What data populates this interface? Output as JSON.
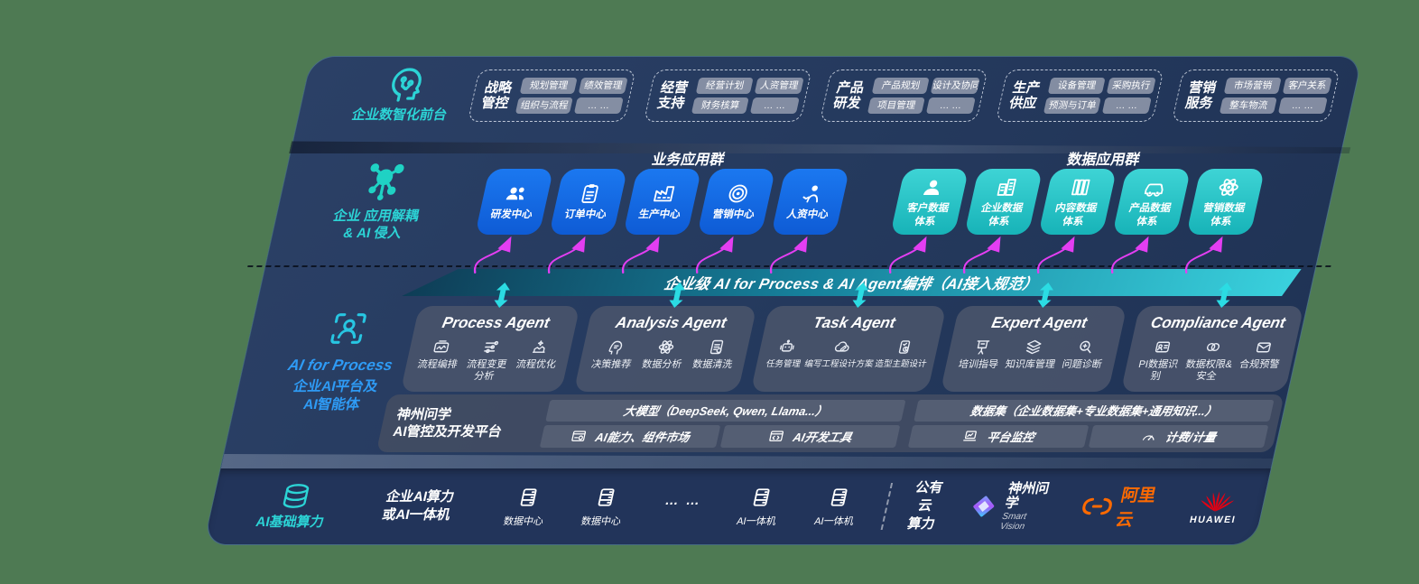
{
  "colors": {
    "background_green": "#4e7a53",
    "panel_navy": "#24395d",
    "accent_teal": "#2cd4d6",
    "accent_blue": "#2e9bf5",
    "app_blue": "#1467e2",
    "app_teal": "#2cc7c9",
    "arrow_magenta": "#e33ef2",
    "alibaba_orange": "#ff6a00",
    "huawei_red": "#e60012"
  },
  "front_office": {
    "label": "企业数智化前台",
    "groups": [
      {
        "title": "战略管控",
        "items": [
          "规划管理",
          "绩效管理",
          "组织与流程",
          "… …"
        ]
      },
      {
        "title": "经营支持",
        "items": [
          "经营计划",
          "人资管理",
          "财务核算",
          "… …"
        ]
      },
      {
        "title": "产品研发",
        "items": [
          "产品规划",
          "设计及协同",
          "项目管理",
          "… …"
        ]
      },
      {
        "title": "生产供应",
        "items": [
          "设备管理",
          "采购执行",
          "预测与订单",
          "… …"
        ]
      },
      {
        "title": "营销服务",
        "items": [
          "市场营销",
          "客户关系",
          "整车物流",
          "… …"
        ]
      }
    ]
  },
  "app_layer": {
    "label_line1": "企业 应用解耦",
    "label_line2": "& AI 侵入",
    "business_group_title": "业务应用群",
    "business_apps": [
      {
        "icon": "team",
        "label": "研发中心"
      },
      {
        "icon": "order",
        "label": "订单中心"
      },
      {
        "icon": "factory",
        "label": "生产中心"
      },
      {
        "icon": "target",
        "label": "营销中心"
      },
      {
        "icon": "hr",
        "label": "人资中心"
      }
    ],
    "data_group_title": "数据应用群",
    "data_apps": [
      {
        "icon": "user",
        "label": "客户数据\n体系"
      },
      {
        "icon": "building",
        "label": "企业数据\n体系"
      },
      {
        "icon": "content",
        "label": "内容数据\n体系"
      },
      {
        "icon": "car",
        "label": "产品数据\n体系"
      },
      {
        "icon": "atom",
        "label": "营销数据\n体系"
      }
    ]
  },
  "ai_bus": {
    "label": "企业级 AI for Process & AI Agent编排（AI接入规范）"
  },
  "agent_layer": {
    "label_en": "AI for Process",
    "label_cn1": "企业AI平台及",
    "label_cn2": "AI智能体",
    "agents": [
      {
        "name": "Process Agent",
        "items": [
          {
            "icon": "workflow",
            "label": "流程编排"
          },
          {
            "icon": "flow-sliders",
            "label": "流程变更分析"
          },
          {
            "icon": "flow-optimize",
            "label": "流程优化"
          }
        ]
      },
      {
        "name": "Analysis Agent",
        "items": [
          {
            "icon": "decision-head",
            "label": "决策推荐"
          },
          {
            "icon": "atom",
            "label": "数据分析"
          },
          {
            "icon": "data-clean",
            "label": "数据清洗"
          }
        ]
      },
      {
        "name": "Task Agent",
        "items": [
          {
            "icon": "robot-task",
            "label": "任务管理"
          },
          {
            "icon": "cloud-edit",
            "label": "编写工程设计方案"
          },
          {
            "icon": "design-check",
            "label": "造型主题设计"
          }
        ]
      },
      {
        "name": "Expert Agent",
        "items": [
          {
            "icon": "training",
            "label": "培训指导"
          },
          {
            "icon": "knowledge-layers",
            "label": "知识库管理"
          },
          {
            "icon": "diagnosis",
            "label": "问题诊断"
          }
        ]
      },
      {
        "name": "Compliance Agent",
        "items": [
          {
            "icon": "id-card",
            "label": "PI数据识别"
          },
          {
            "icon": "data-link",
            "label": "数据权限&\n安全"
          },
          {
            "icon": "compliance-mail",
            "label": "合规预警"
          }
        ]
      }
    ]
  },
  "platform": {
    "label_line1": "神州问学",
    "label_line2": "AI管控及开发平台",
    "left": {
      "bar": "大模型（DeepSeek, Qwen, Llama...）",
      "cells": [
        {
          "icon": "component-market",
          "label": "AI能力、组件市场"
        },
        {
          "icon": "dev-tools",
          "label": "AI开发工具"
        }
      ]
    },
    "right": {
      "bar": "数据集（企业数据集+专业数据集+通用知识...）",
      "cells": [
        {
          "icon": "monitor",
          "label": "平台监控"
        },
        {
          "icon": "meter",
          "label": "计费/计量"
        }
      ]
    }
  },
  "infra": {
    "label": "AI基础算力",
    "compute": "企业AI算力\n或AI一体机",
    "nodes": [
      {
        "icon": "server",
        "label": "数据中心"
      },
      {
        "icon": "server",
        "label": "数据中心"
      },
      {
        "icon": "",
        "label": "… …"
      },
      {
        "icon": "server",
        "label": "AI一体机"
      },
      {
        "icon": "server",
        "label": "AI一体机"
      }
    ],
    "public_cloud": "公有云\n算力",
    "logos": {
      "shenzhou": {
        "name": "神州问学",
        "sub": "Smart Vision"
      },
      "alibaba": {
        "name": "阿里云"
      },
      "huawei": {
        "name": "HUAWEI"
      }
    }
  }
}
